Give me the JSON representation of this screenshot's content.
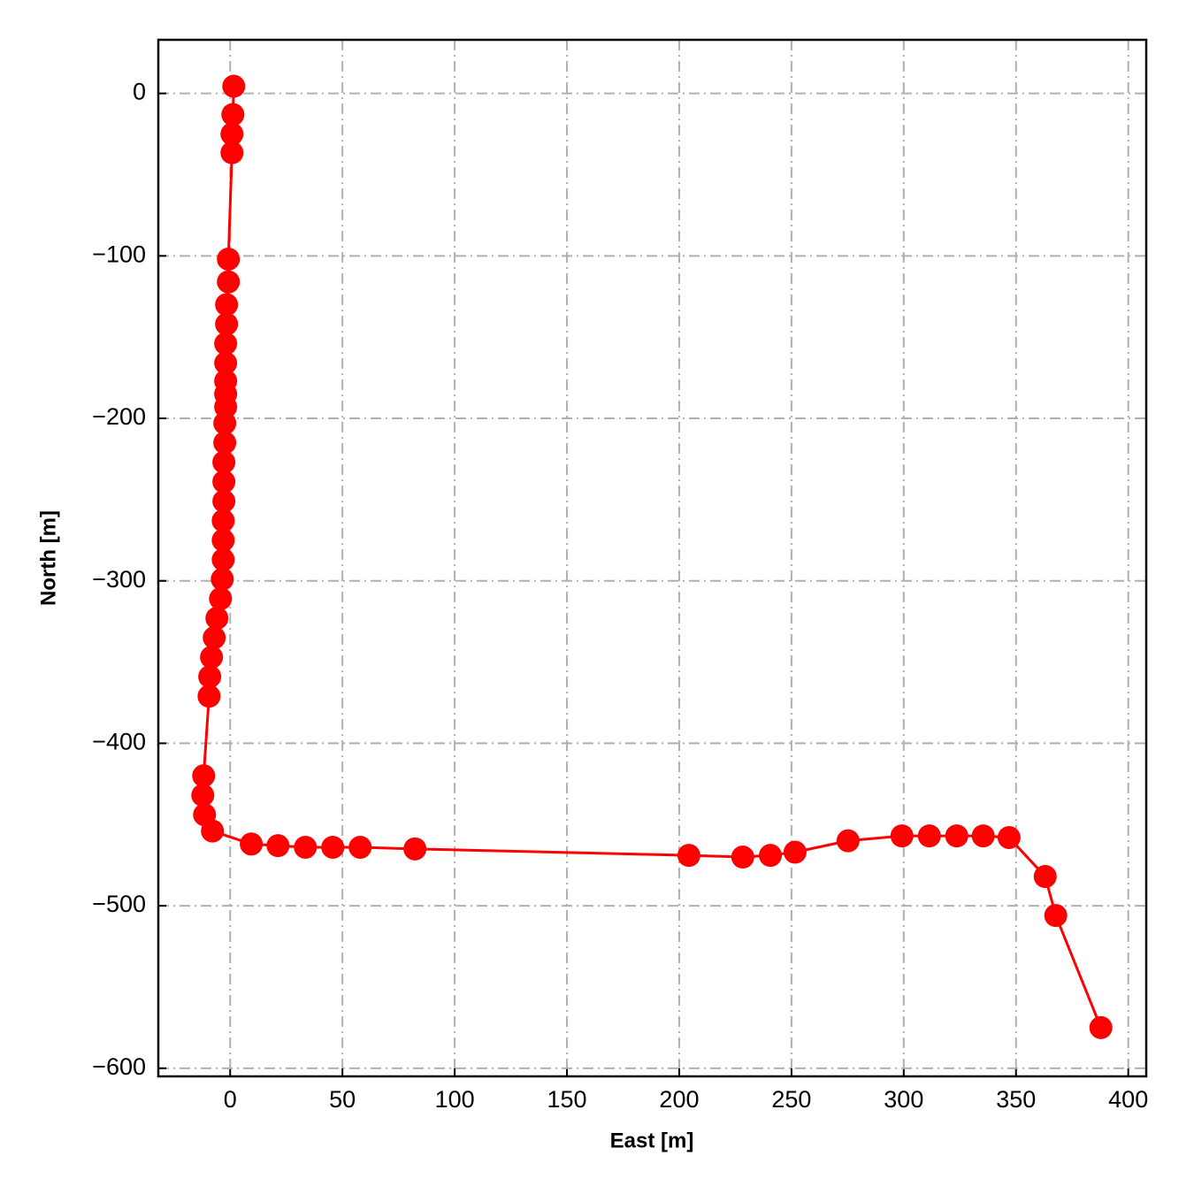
{
  "chart_data": {
    "type": "line",
    "xlabel": "East [m]",
    "ylabel": "North [m]",
    "x": [
      1.6,
      1.2,
      0.8,
      0.8,
      -0.8,
      -0.8,
      -1.6,
      -1.6,
      -2,
      -2,
      -2,
      -2,
      -2,
      -2.4,
      -2.4,
      -2.8,
      -2.8,
      -2.8,
      -3.1,
      -3.1,
      -3.1,
      -3.5,
      -4.3,
      -5.9,
      -7.1,
      -8.3,
      -9.1,
      -9.4,
      -11.8,
      -12.2,
      -11.4,
      -7.9,
      9.4,
      21.3,
      33.5,
      45.7,
      57.9,
      82.3,
      204.3,
      228.3,
      240.6,
      251.6,
      275.2,
      299.2,
      311.4,
      323.6,
      335.4,
      346.9,
      363,
      367.7,
      387.8
    ],
    "series": [
      {
        "color": "#ff0000",
        "values": [
          4.4,
          -13,
          -25,
          -36.5,
          -102,
          -116,
          -130,
          -142,
          -154,
          -166,
          -177,
          -185,
          -193,
          -203,
          -215,
          -227,
          -239,
          -251,
          -263,
          -275,
          -287,
          -299,
          -311,
          -323,
          -335,
          -347,
          -359,
          -371,
          -420,
          -432,
          -444,
          -454,
          -462,
          -463,
          -464,
          -464,
          -464,
          -465,
          -469,
          -470,
          -469,
          -467,
          -460,
          -457,
          -457,
          -457,
          -457,
          -458,
          -482,
          -506,
          -575
        ]
      }
    ],
    "xlim": [
      -32,
      408
    ],
    "ylim": [
      -605,
      33
    ],
    "xticks": [
      0,
      50,
      100,
      150,
      200,
      250,
      300,
      350,
      400
    ],
    "yticks": [
      0,
      {
        "value": -100,
        "label": "−100"
      },
      {
        "value": -200,
        "label": "−200"
      },
      {
        "value": -300,
        "label": "−300"
      },
      {
        "value": -400,
        "label": "−400"
      },
      {
        "value": -500,
        "label": "−500"
      },
      {
        "value": -600,
        "label": "−600"
      }
    ],
    "grid": true
  }
}
